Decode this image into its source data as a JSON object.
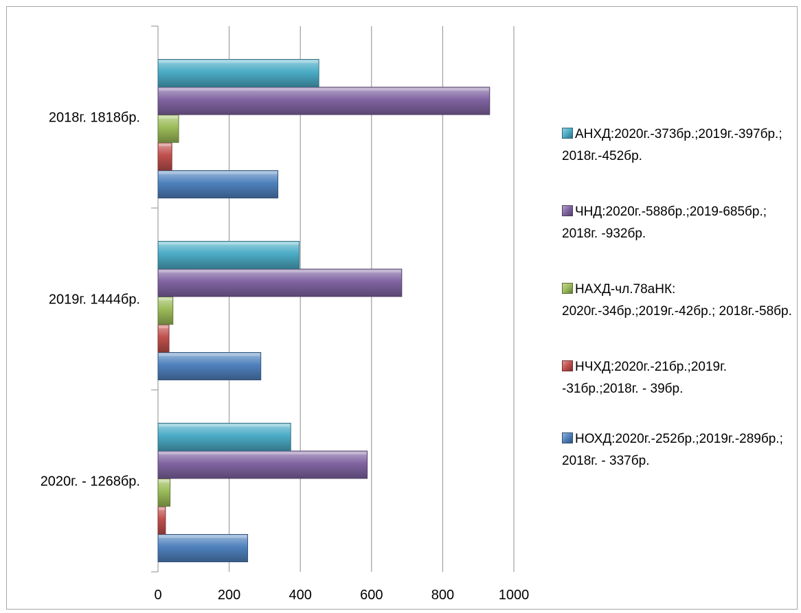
{
  "chart_data": {
    "type": "bar",
    "orientation": "horizontal",
    "categories": [
      "2020г. - 1268бр.",
      "2019г. 1444бр.",
      "2018г. 1818бр."
    ],
    "series": [
      {
        "name": "НОХД:2020г.-252бр.;2019г.-289бр.; 2018г. - 337бр.",
        "color": "#4f81bd",
        "values": [
          252,
          289,
          337
        ]
      },
      {
        "name": "НЧХД:2020г.-21бр.;2019г. -31бр.;2018г. - 39бр.",
        "color": "#c0504d",
        "values": [
          21,
          31,
          39
        ]
      },
      {
        "name": "НАХД-чл.78аНК: 2020г.-34бр.;2019г.-42бр.; 2018г.-58бр.",
        "color": "#9bbb59",
        "values": [
          34,
          42,
          58
        ]
      },
      {
        "name": "ЧНД:2020г.-588бр.;2019-685бр.; 2018г. -932бр.",
        "color": "#8064a2",
        "values": [
          588,
          685,
          932
        ]
      },
      {
        "name": "АНХД:2020г.-373бр.;2019г.-397бр.; 2018г.-452бр.",
        "color": "#4bacc6",
        "values": [
          373,
          397,
          452
        ]
      }
    ],
    "xlim": [
      0,
      1000
    ],
    "xticks": [
      "0",
      "200",
      "400",
      "600",
      "800",
      "1000"
    ],
    "grid": "vertical",
    "legend_position": "right",
    "legend_order": [
      4,
      3,
      2,
      1,
      0
    ]
  }
}
